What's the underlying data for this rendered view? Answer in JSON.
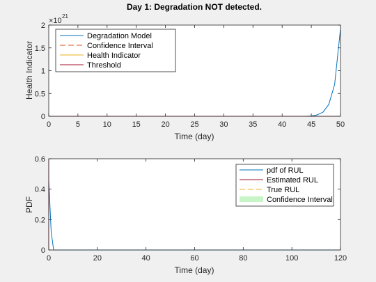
{
  "figure": {
    "background": "#f0f0f0",
    "axes_background": "#ffffff",
    "axis_color": "#262626"
  },
  "chart_data": [
    {
      "type": "line",
      "title": "Day 1: Degradation NOT detected.",
      "xlabel": "Time (day)",
      "ylabel": "Health Indicator",
      "xlim": [
        0,
        50
      ],
      "ylim": [
        0,
        2
      ],
      "y_exponent": "21",
      "xticks": [
        0,
        5,
        10,
        15,
        20,
        25,
        30,
        35,
        40,
        45,
        50
      ],
      "yticks": [
        0,
        0.5,
        1,
        1.5,
        2
      ],
      "xtick_labels": [
        "0",
        "5",
        "10",
        "15",
        "20",
        "25",
        "30",
        "35",
        "40",
        "45",
        "50"
      ],
      "ytick_labels": [
        "0",
        "0.5",
        "1",
        "1.5",
        "2"
      ],
      "grid": false,
      "legend": {
        "placement": "top-left"
      },
      "series": [
        {
          "name": "Degradation Model",
          "color": "#0072bd",
          "style": "solid",
          "x": [
            0,
            5,
            10,
            15,
            20,
            25,
            30,
            35,
            40,
            44,
            45,
            46,
            47,
            48,
            49,
            50
          ],
          "y": [
            0,
            0,
            0,
            0,
            0,
            0,
            0,
            0,
            0,
            0,
            0.005,
            0.03,
            0.09,
            0.26,
            0.7,
            1.92
          ]
        },
        {
          "name": "Confidence Interval",
          "color": "#d95319",
          "style": "dashed",
          "x": [
            0,
            50
          ],
          "y": [
            0,
            0
          ]
        },
        {
          "name": "Health Indicator",
          "color": "#edb120",
          "style": "solid",
          "x": [
            0,
            1
          ],
          "y": [
            0,
            0
          ]
        },
        {
          "name": "Threshold",
          "color": "#a2142f",
          "style": "solid",
          "x": [
            0,
            50
          ],
          "y": [
            0,
            0
          ]
        }
      ]
    },
    {
      "type": "line",
      "title": "",
      "xlabel": "Time (day)",
      "ylabel": "PDF",
      "xlim": [
        0,
        120
      ],
      "ylim": [
        0,
        0.6
      ],
      "xticks": [
        0,
        20,
        40,
        60,
        80,
        100,
        120
      ],
      "yticks": [
        0,
        0.2,
        0.4,
        0.6
      ],
      "xtick_labels": [
        "0",
        "20",
        "40",
        "60",
        "80",
        "100",
        "120"
      ],
      "ytick_labels": [
        "0",
        "0.2",
        "0.4",
        "0.6"
      ],
      "grid": false,
      "legend": {
        "placement": "top-right"
      },
      "series": [
        {
          "name": "pdf of RUL",
          "color": "#0072bd",
          "style": "solid",
          "x": [
            0,
            1,
            2,
            120
          ],
          "y": [
            0.46,
            0.12,
            0,
            0
          ]
        },
        {
          "name": "Estimated RUL",
          "color": "#a2142f",
          "style": "solid",
          "x": [
            0,
            0
          ],
          "y": [
            0,
            0.6
          ]
        },
        {
          "name": "True RUL",
          "color": "#edb120",
          "style": "dashed",
          "x": [],
          "y": []
        },
        {
          "name": "Confidence Interval",
          "color": "#c8f5c8",
          "style": "patch",
          "x": [],
          "y": []
        }
      ]
    }
  ]
}
